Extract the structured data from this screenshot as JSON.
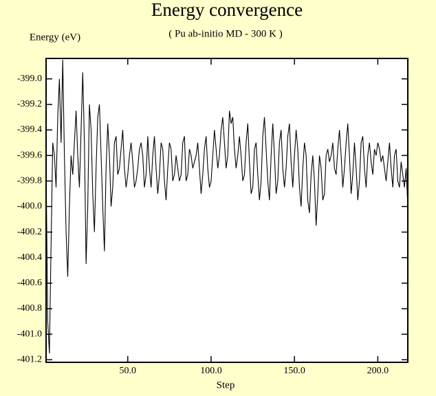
{
  "chart_data": {
    "type": "line",
    "title": "Energy convergence",
    "subtitle": "( Pu ab-initio MD - 300 K )",
    "y_label": "Energy (eV)",
    "x_label": "Step",
    "color": "#000000",
    "xlim": [
      1,
      218
    ],
    "ylim": [
      -401.22,
      -398.84
    ],
    "xticks": [
      {
        "value": 50,
        "label": "50.0"
      },
      {
        "value": 100,
        "label": "100.0"
      },
      {
        "value": 150,
        "label": "150.0"
      },
      {
        "value": 200,
        "label": "200.0"
      }
    ],
    "yticks": [
      {
        "value": -399.0,
        "label": "-399.0"
      },
      {
        "value": -399.2,
        "label": "-399.2"
      },
      {
        "value": -399.4,
        "label": "-399.4"
      },
      {
        "value": -399.6,
        "label": "-399.6"
      },
      {
        "value": -399.8,
        "label": "-399.8"
      },
      {
        "value": -400.0,
        "label": "-400.0"
      },
      {
        "value": -400.2,
        "label": "-400.2"
      },
      {
        "value": -400.4,
        "label": "-400.4"
      },
      {
        "value": -400.6,
        "label": "-400.6"
      },
      {
        "value": -400.8,
        "label": "-400.8"
      },
      {
        "value": -401.0,
        "label": "-401.0"
      },
      {
        "value": -401.2,
        "label": "-401.2"
      }
    ],
    "x": [
      1,
      2,
      3,
      4,
      5,
      6,
      7,
      8,
      9,
      10,
      11,
      12,
      13,
      14,
      15,
      16,
      17,
      18,
      19,
      20,
      21,
      22,
      23,
      24,
      25,
      26,
      27,
      28,
      29,
      30,
      31,
      32,
      33,
      34,
      35,
      36,
      37,
      38,
      39,
      40,
      41,
      42,
      43,
      44,
      45,
      46,
      47,
      48,
      49,
      50,
      51,
      52,
      53,
      54,
      55,
      56,
      57,
      58,
      59,
      60,
      61,
      62,
      63,
      64,
      65,
      66,
      67,
      68,
      69,
      70,
      71,
      72,
      73,
      74,
      75,
      76,
      77,
      78,
      79,
      80,
      81,
      82,
      83,
      84,
      85,
      86,
      87,
      88,
      89,
      90,
      91,
      92,
      93,
      94,
      95,
      96,
      97,
      98,
      99,
      100,
      101,
      102,
      103,
      104,
      105,
      106,
      107,
      108,
      109,
      110,
      111,
      112,
      113,
      114,
      115,
      116,
      117,
      118,
      119,
      120,
      121,
      122,
      123,
      124,
      125,
      126,
      127,
      128,
      129,
      130,
      131,
      132,
      133,
      134,
      135,
      136,
      137,
      138,
      139,
      140,
      141,
      142,
      143,
      144,
      145,
      146,
      147,
      148,
      149,
      150,
      151,
      152,
      153,
      154,
      155,
      156,
      157,
      158,
      159,
      160,
      161,
      162,
      163,
      164,
      165,
      166,
      167,
      168,
      169,
      170,
      171,
      172,
      173,
      174,
      175,
      176,
      177,
      178,
      179,
      180,
      181,
      182,
      183,
      184,
      185,
      186,
      187,
      188,
      189,
      190,
      191,
      192,
      193,
      194,
      195,
      196,
      197,
      198,
      199,
      200,
      201,
      202,
      203,
      204,
      205,
      206,
      207,
      208,
      209,
      210,
      211,
      212,
      213,
      214,
      215,
      216,
      217,
      218
    ],
    "values": [
      -399.7,
      -400.9,
      -401.15,
      -400.3,
      -399.5,
      -399.6,
      -399.85,
      -399.3,
      -399.0,
      -399.5,
      -398.85,
      -399.6,
      -400.2,
      -400.55,
      -400.0,
      -399.6,
      -399.75,
      -399.5,
      -399.25,
      -399.6,
      -399.85,
      -399.4,
      -398.95,
      -399.5,
      -400.45,
      -400.0,
      -399.2,
      -399.4,
      -399.9,
      -400.2,
      -399.7,
      -399.3,
      -399.2,
      -399.6,
      -400.0,
      -400.35,
      -399.7,
      -399.35,
      -399.6,
      -400.0,
      -399.85,
      -399.5,
      -399.45,
      -399.75,
      -399.7,
      -399.55,
      -399.4,
      -399.7,
      -399.85,
      -399.75,
      -399.6,
      -399.5,
      -399.65,
      -399.85,
      -399.8,
      -399.7,
      -399.55,
      -399.5,
      -399.6,
      -399.85,
      -399.75,
      -399.45,
      -399.7,
      -399.85,
      -399.6,
      -399.45,
      -399.7,
      -399.9,
      -399.75,
      -399.5,
      -399.55,
      -399.8,
      -399.95,
      -399.7,
      -399.5,
      -399.55,
      -399.8,
      -399.75,
      -399.6,
      -399.7,
      -399.8,
      -399.75,
      -399.5,
      -399.45,
      -399.8,
      -399.75,
      -399.55,
      -399.6,
      -399.7,
      -399.65,
      -399.6,
      -399.5,
      -399.7,
      -399.9,
      -399.75,
      -399.55,
      -399.45,
      -399.7,
      -399.85,
      -399.8,
      -399.6,
      -399.4,
      -399.55,
      -399.7,
      -399.6,
      -399.4,
      -399.3,
      -399.5,
      -399.7,
      -399.6,
      -399.25,
      -399.35,
      -399.3,
      -399.55,
      -399.7,
      -399.6,
      -399.45,
      -399.6,
      -399.8,
      -399.75,
      -399.5,
      -399.35,
      -399.65,
      -399.9,
      -399.85,
      -399.55,
      -399.5,
      -399.75,
      -399.95,
      -399.8,
      -399.45,
      -399.3,
      -399.55,
      -399.8,
      -399.95,
      -399.6,
      -399.35,
      -399.6,
      -399.9,
      -399.8,
      -399.5,
      -399.4,
      -399.7,
      -399.85,
      -399.7,
      -399.45,
      -399.35,
      -399.65,
      -399.85,
      -399.6,
      -399.4,
      -399.55,
      -399.85,
      -400.0,
      -399.7,
      -399.5,
      -399.6,
      -399.95,
      -400.05,
      -399.75,
      -399.6,
      -399.8,
      -400.15,
      -399.9,
      -399.6,
      -399.7,
      -399.95,
      -399.9,
      -399.6,
      -399.55,
      -399.65,
      -399.6,
      -399.5,
      -399.7,
      -399.75,
      -399.55,
      -399.4,
      -399.6,
      -399.85,
      -399.7,
      -399.5,
      -399.35,
      -399.6,
      -399.9,
      -399.75,
      -399.5,
      -399.7,
      -399.95,
      -399.8,
      -399.5,
      -399.45,
      -399.7,
      -399.85,
      -399.6,
      -399.5,
      -399.65,
      -399.75,
      -399.55,
      -399.6,
      -399.5,
      -399.55,
      -399.65,
      -399.6,
      -399.7,
      -399.8,
      -399.65,
      -399.5,
      -399.7,
      -399.85,
      -399.6,
      -399.55,
      -399.8,
      -399.85,
      -399.65,
      -399.75,
      -399.85,
      -399.7,
      -400.0
    ]
  }
}
